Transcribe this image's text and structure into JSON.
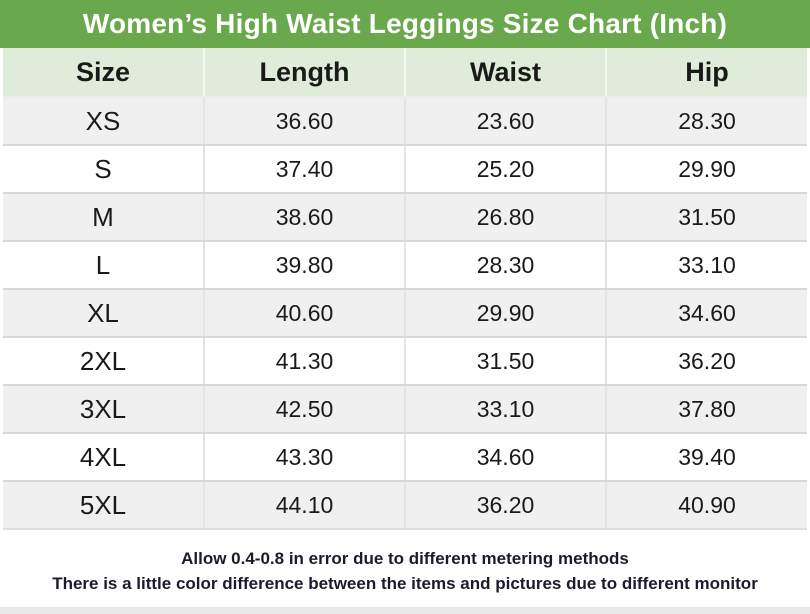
{
  "title": "Women’s High Waist Leggings Size Chart (Inch)",
  "chart_data": {
    "type": "table",
    "columns": [
      "Size",
      "Length",
      "Waist",
      "Hip"
    ],
    "rows": [
      [
        "XS",
        "36.60",
        "23.60",
        "28.30"
      ],
      [
        "S",
        "37.40",
        "25.20",
        "29.90"
      ],
      [
        "M",
        "38.60",
        "26.80",
        "31.50"
      ],
      [
        "L",
        "39.80",
        "28.30",
        "33.10"
      ],
      [
        "XL",
        "40.60",
        "29.90",
        "34.60"
      ],
      [
        "2XL",
        "41.30",
        "31.50",
        "36.20"
      ],
      [
        "3XL",
        "42.50",
        "33.10",
        "37.80"
      ],
      [
        "4XL",
        "43.30",
        "34.60",
        "39.40"
      ],
      [
        "5XL",
        "44.10",
        "36.20",
        "40.90"
      ]
    ],
    "unit": "Inch"
  },
  "footer": {
    "line1": "Allow 0.4-0.8 in error due to different metering methods",
    "line2": "There is a little color difference between the items and pictures due to different monitor"
  },
  "colors": {
    "title_bar_green": "#6aa84d",
    "header_row_green": "#dfecda",
    "row_alt_gray": "#f0f0f0",
    "row_white": "#ffffff",
    "horizontal_border": "#d8d8d8",
    "vertical_border": "#e4e4e4",
    "title_text": "#ffffff",
    "table_text": "#1a1a1a",
    "footer_text": "#1b1b2a",
    "bottom_strip": "#e9e9e9"
  }
}
